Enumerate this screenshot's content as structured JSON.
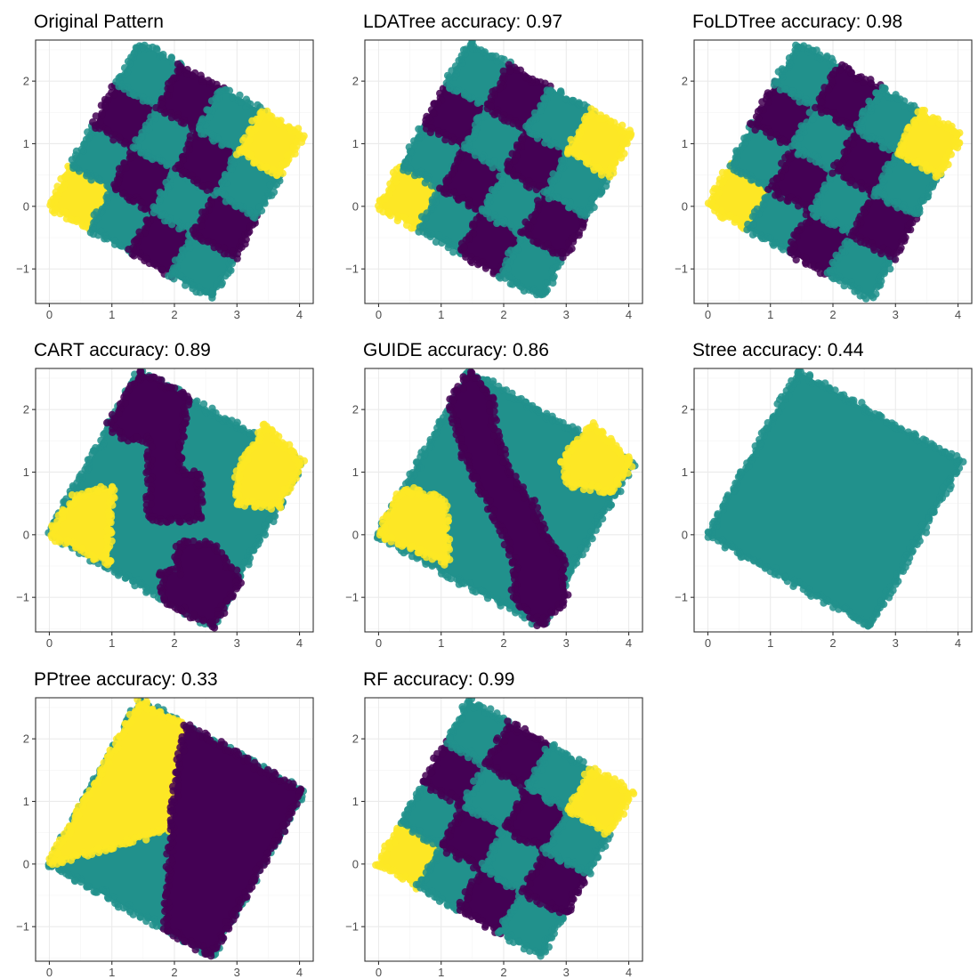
{
  "colors": {
    "purple": "#440154",
    "teal": "#21918c",
    "yellow": "#fde725"
  },
  "chart_data": [
    {
      "type": "scatter",
      "title": "Original Pattern",
      "xlim": [
        0,
        4
      ],
      "ylim": [
        -1.5,
        2.5
      ],
      "x_ticks": [
        0,
        1,
        2,
        3,
        4
      ],
      "y_ticks": [
        -1,
        0,
        1,
        2
      ],
      "grid": true,
      "square": {
        "corners": [
          [
            0,
            0
          ],
          [
            1.45,
            2.6
          ],
          [
            4.05,
            1.15
          ],
          [
            2.6,
            -1.45
          ]
        ],
        "grid_divisions": 4
      },
      "cell_classes": [
        [
          "yellow",
          "teal",
          "purple",
          "teal"
        ],
        [
          "teal",
          "purple",
          "teal",
          "purple"
        ],
        [
          "purple",
          "teal",
          "purple",
          "teal"
        ],
        [
          "teal",
          "purple",
          "teal",
          "yellow"
        ]
      ]
    },
    {
      "type": "scatter",
      "title": "LDATree accuracy: 0.97",
      "xlim": [
        0,
        4
      ],
      "ylim": [
        -1.5,
        2.5
      ],
      "x_ticks": [
        0,
        1,
        2,
        3,
        4
      ],
      "y_ticks": [
        -1,
        0,
        1,
        2
      ],
      "grid": true,
      "square": {
        "corners": [
          [
            0,
            0
          ],
          [
            1.45,
            2.6
          ],
          [
            4.05,
            1.15
          ],
          [
            2.6,
            -1.45
          ]
        ],
        "grid_divisions": 4
      },
      "cell_classes": [
        [
          "yellow",
          "teal",
          "purple",
          "teal"
        ],
        [
          "teal",
          "purple",
          "teal",
          "purple"
        ],
        [
          "purple",
          "teal",
          "purple",
          "teal"
        ],
        [
          "teal",
          "purple",
          "teal",
          "yellow"
        ]
      ]
    },
    {
      "type": "scatter",
      "title": "FoLDTree accuracy: 0.98",
      "xlim": [
        0,
        4
      ],
      "ylim": [
        -1.5,
        2.5
      ],
      "x_ticks": [
        0,
        1,
        2,
        3,
        4
      ],
      "y_ticks": [
        -1,
        0,
        1,
        2
      ],
      "grid": true,
      "square": {
        "corners": [
          [
            0,
            0
          ],
          [
            1.45,
            2.6
          ],
          [
            4.05,
            1.15
          ],
          [
            2.6,
            -1.45
          ]
        ],
        "grid_divisions": 4
      },
      "cell_classes": [
        [
          "yellow",
          "teal",
          "purple",
          "teal"
        ],
        [
          "teal",
          "purple",
          "teal",
          "purple"
        ],
        [
          "purple",
          "teal",
          "purple",
          "teal"
        ],
        [
          "teal",
          "purple",
          "teal",
          "yellow"
        ]
      ]
    },
    {
      "type": "scatter",
      "title": "CART accuracy: 0.89",
      "xlim": [
        0,
        4
      ],
      "ylim": [
        -1.5,
        2.5
      ],
      "x_ticks": [
        0,
        1,
        2,
        3,
        4
      ],
      "y_ticks": [
        -1,
        0,
        1,
        2
      ],
      "grid": true,
      "square": {
        "corners": [
          [
            0,
            0
          ],
          [
            1.45,
            2.6
          ],
          [
            4.05,
            1.15
          ],
          [
            2.6,
            -1.45
          ]
        ],
        "grid_divisions": 4
      },
      "fill_class": "teal",
      "regions": [
        {
          "class": "yellow",
          "points": [
            [
              0,
              0
            ],
            [
              0.4,
              0.6
            ],
            [
              1.0,
              0.75
            ],
            [
              0.95,
              -0.3
            ],
            [
              0.95,
              -0.45
            ]
          ]
        },
        {
          "class": "yellow",
          "points": [
            [
              3.45,
              1.75
            ],
            [
              3.0,
              1.0
            ],
            [
              3.0,
              0.5
            ],
            [
              3.65,
              0.45
            ],
            [
              4.05,
              1.15
            ]
          ]
        },
        {
          "class": "purple",
          "points": [
            [
              1.45,
              2.6
            ],
            [
              0.95,
              1.75
            ],
            [
              1.3,
              1.5
            ],
            [
              1.6,
              1.55
            ],
            [
              1.6,
              0.25
            ],
            [
              2.4,
              0.25
            ],
            [
              2.4,
              1.0
            ],
            [
              2.1,
              1.0
            ],
            [
              2.1,
              1.5
            ],
            [
              2.2,
              2.2
            ]
          ]
        },
        {
          "class": "purple",
          "points": [
            [
              1.8,
              -0.6
            ],
            [
              2.05,
              -0.6
            ],
            [
              2.05,
              -0.15
            ],
            [
              2.6,
              -0.15
            ],
            [
              3.0,
              -0.65
            ],
            [
              3.05,
              -0.75
            ],
            [
              2.6,
              -1.45
            ],
            [
              1.85,
              -1.05
            ]
          ]
        }
      ]
    },
    {
      "type": "scatter",
      "title": "GUIDE accuracy: 0.86",
      "xlim": [
        0,
        4
      ],
      "ylim": [
        -1.5,
        2.5
      ],
      "x_ticks": [
        0,
        1,
        2,
        3,
        4
      ],
      "y_ticks": [
        -1,
        0,
        1,
        2
      ],
      "grid": true,
      "square": {
        "corners": [
          [
            0,
            0
          ],
          [
            1.45,
            2.6
          ],
          [
            4.05,
            1.15
          ],
          [
            2.6,
            -1.45
          ]
        ],
        "grid_divisions": 4
      },
      "fill_class": "teal",
      "regions": [
        {
          "class": "yellow",
          "points": [
            [
              0,
              0
            ],
            [
              0.4,
              0.75
            ],
            [
              1.05,
              0.55
            ],
            [
              1.1,
              -0.45
            ]
          ]
        },
        {
          "class": "yellow",
          "points": [
            [
              3.45,
              1.75
            ],
            [
              2.95,
              1.25
            ],
            [
              3.05,
              0.8
            ],
            [
              3.75,
              0.7
            ],
            [
              4.05,
              1.15
            ]
          ]
        },
        {
          "class": "purple",
          "points": [
            [
              1.45,
              2.6
            ],
            [
              1.15,
              2.1
            ],
            [
              1.3,
              1.4
            ],
            [
              1.75,
              0.5
            ],
            [
              2.0,
              0.0
            ],
            [
              2.1,
              -0.2
            ],
            [
              2.2,
              -0.6
            ],
            [
              2.15,
              -1.0
            ],
            [
              2.6,
              -1.45
            ],
            [
              3.0,
              -1.0
            ],
            [
              2.95,
              -0.4
            ],
            [
              2.65,
              0.05
            ],
            [
              2.45,
              0.5
            ],
            [
              2.1,
              1.0
            ],
            [
              1.85,
              1.7
            ],
            [
              1.8,
              2.2
            ]
          ]
        }
      ]
    },
    {
      "type": "scatter",
      "title": "Stree accuracy: 0.44",
      "xlim": [
        0,
        4
      ],
      "ylim": [
        -1.5,
        2.5
      ],
      "x_ticks": [
        0,
        1,
        2,
        3,
        4
      ],
      "y_ticks": [
        -1,
        0,
        1,
        2
      ],
      "grid": true,
      "square": {
        "corners": [
          [
            0,
            0
          ],
          [
            1.45,
            2.6
          ],
          [
            4.05,
            1.15
          ],
          [
            2.6,
            -1.45
          ]
        ],
        "grid_divisions": 4
      },
      "fill_class": "teal",
      "regions": []
    },
    {
      "type": "scatter",
      "title": "PPtree accuracy: 0.33",
      "xlim": [
        0,
        4
      ],
      "ylim": [
        -1.5,
        2.5
      ],
      "x_ticks": [
        0,
        1,
        2,
        3,
        4
      ],
      "y_ticks": [
        -1,
        0,
        1,
        2
      ],
      "grid": true,
      "square": {
        "corners": [
          [
            0,
            0
          ],
          [
            1.45,
            2.6
          ],
          [
            4.05,
            1.15
          ],
          [
            2.6,
            -1.45
          ]
        ],
        "grid_divisions": 4
      },
      "fill_class": "teal",
      "regions": [
        {
          "class": "yellow",
          "points": [
            [
              0,
              0
            ],
            [
              1.45,
              2.6
            ],
            [
              2.2,
              2.2
            ],
            [
              2.05,
              1.5
            ],
            [
              1.95,
              0.55
            ]
          ]
        },
        {
          "class": "purple",
          "points": [
            [
              2.2,
              2.2
            ],
            [
              4.05,
              1.15
            ],
            [
              2.6,
              -1.45
            ],
            [
              1.85,
              -1.05
            ],
            [
              1.95,
              0.55
            ],
            [
              2.05,
              1.5
            ]
          ]
        }
      ]
    },
    {
      "type": "scatter",
      "title": "RF accuracy: 0.99",
      "xlim": [
        0,
        4
      ],
      "ylim": [
        -1.5,
        2.5
      ],
      "x_ticks": [
        0,
        1,
        2,
        3,
        4
      ],
      "y_ticks": [
        -1,
        0,
        1,
        2
      ],
      "grid": true,
      "square": {
        "corners": [
          [
            0,
            0
          ],
          [
            1.45,
            2.6
          ],
          [
            4.05,
            1.15
          ],
          [
            2.6,
            -1.45
          ]
        ],
        "grid_divisions": 4
      },
      "cell_classes": [
        [
          "yellow",
          "teal",
          "purple",
          "teal"
        ],
        [
          "teal",
          "purple",
          "teal",
          "purple"
        ],
        [
          "purple",
          "teal",
          "purple",
          "teal"
        ],
        [
          "teal",
          "purple",
          "teal",
          "yellow"
        ]
      ]
    }
  ]
}
